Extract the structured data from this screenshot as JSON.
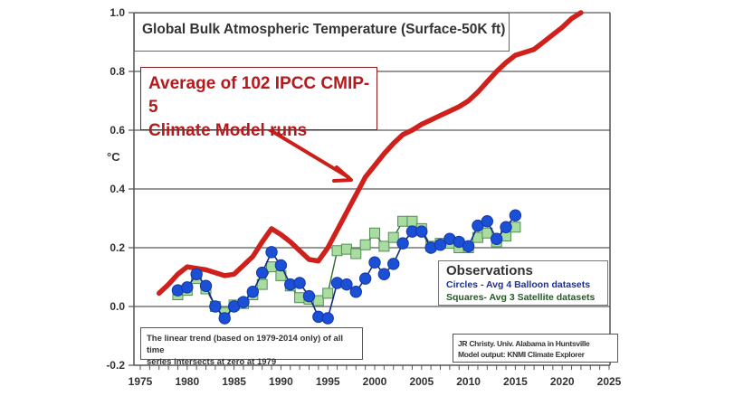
{
  "chart_data": {
    "type": "line",
    "title": "Global Bulk Atmospheric Temperature (Surface-50K ft)",
    "xlabel": "",
    "ylabel": "°C",
    "xlim": [
      1975,
      2025
    ],
    "ylim": [
      -0.2,
      1.0
    ],
    "grid": "horizontal",
    "x_ticks": [
      "1975",
      "1980",
      "1985",
      "1990",
      "1995",
      "2000",
      "2005",
      "2010",
      "2015",
      "2020",
      "2025"
    ],
    "y_ticks": [
      "-0.2",
      "0.0",
      "0.2",
      "0.4",
      "0.6",
      "0.8",
      "1.0"
    ],
    "annotations": {
      "model_label": [
        "Average of 102 IPCC CMIP-5",
        "Climate Model runs"
      ],
      "observations_title": "Observations",
      "circles_label": "Circles - Avg 4 Balloon datasets",
      "squares_label": "Squares- Avg 3 Satellite datasets",
      "trend_note": [
        "The linear trend (based on 1979-2014 only) of all time",
        "series intersects at zero at 1979"
      ],
      "credit": [
        "JR Christy. Univ. Alabama in Huntsville",
        "Model output: KNMI Climate Explorer"
      ]
    },
    "series": [
      {
        "name": "Average of 102 IPCC CMIP-5 Climate Model runs",
        "style": "line",
        "color": "#d0201c",
        "x": [
          1977,
          1978,
          1979,
          1980,
          1981,
          1982,
          1983,
          1984,
          1985,
          1986,
          1987,
          1988,
          1989,
          1990,
          1991,
          1992,
          1993,
          1994,
          1995,
          1996,
          1997,
          1998,
          1999,
          2000,
          2001,
          2002,
          2003,
          2004,
          2005,
          2006,
          2007,
          2008,
          2009,
          2010,
          2011,
          2012,
          2013,
          2014,
          2015,
          2016,
          2017,
          2018,
          2019,
          2020,
          2021,
          2022
        ],
        "values": [
          0.045,
          0.075,
          0.11,
          0.135,
          0.13,
          0.125,
          0.115,
          0.105,
          0.11,
          0.14,
          0.17,
          0.22,
          0.265,
          0.245,
          0.22,
          0.19,
          0.16,
          0.155,
          0.2,
          0.26,
          0.32,
          0.38,
          0.44,
          0.48,
          0.52,
          0.555,
          0.585,
          0.6,
          0.62,
          0.635,
          0.65,
          0.665,
          0.68,
          0.7,
          0.73,
          0.765,
          0.8,
          0.83,
          0.855,
          0.865,
          0.875,
          0.9,
          0.925,
          0.95,
          0.98,
          1.0
        ]
      },
      {
        "name": "Circles - Avg 4 Balloon datasets",
        "style": "circles",
        "color": "#1a4fd6",
        "x": [
          1979,
          1980,
          1981,
          1982,
          1983,
          1984,
          1985,
          1986,
          1987,
          1988,
          1989,
          1990,
          1991,
          1992,
          1993,
          1994,
          1995,
          1996,
          1997,
          1998,
          1999,
          2000,
          2001,
          2002,
          2003,
          2004,
          2005,
          2006,
          2007,
          2008,
          2009,
          2010,
          2011,
          2012,
          2013,
          2014,
          2015
        ],
        "values": [
          0.055,
          0.065,
          0.11,
          0.07,
          0.0,
          -0.04,
          0.0,
          0.015,
          0.05,
          0.115,
          0.185,
          0.14,
          0.075,
          0.08,
          0.035,
          -0.035,
          -0.04,
          0.08,
          0.075,
          0.05,
          0.095,
          0.15,
          0.11,
          0.145,
          0.215,
          0.255,
          0.255,
          0.2,
          0.21,
          0.23,
          0.22,
          0.205,
          0.275,
          0.29,
          0.23,
          0.27,
          0.31
        ]
      },
      {
        "name": "Squares- Avg 3 Satellite datasets",
        "style": "squares",
        "color": "#a8dca0",
        "x": [
          1979,
          1980,
          1981,
          1982,
          1983,
          1984,
          1985,
          1986,
          1987,
          1988,
          1989,
          1990,
          1991,
          1992,
          1993,
          1994,
          1995,
          1996,
          1997,
          1998,
          1999,
          2000,
          2001,
          2002,
          2003,
          2004,
          2005,
          2006,
          2007,
          2008,
          2009,
          2010,
          2011,
          2012,
          2013,
          2014,
          2015
        ],
        "values": [
          0.04,
          0.055,
          0.095,
          0.06,
          0.0,
          -0.02,
          0.005,
          0.01,
          0.04,
          0.075,
          0.135,
          0.105,
          0.07,
          0.03,
          0.025,
          0.02,
          0.045,
          0.19,
          0.195,
          0.18,
          0.21,
          0.25,
          0.205,
          0.235,
          0.29,
          0.29,
          0.265,
          0.205,
          0.215,
          0.215,
          0.2,
          0.2,
          0.235,
          0.25,
          0.22,
          0.24,
          0.27
        ]
      }
    ]
  }
}
